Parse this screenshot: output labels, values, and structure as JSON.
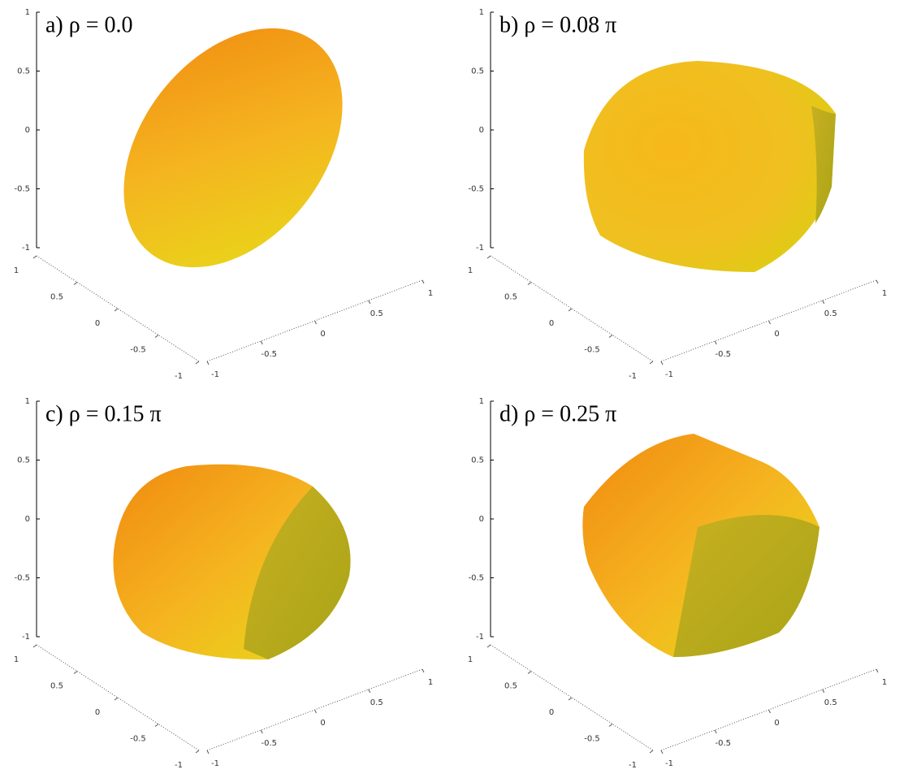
{
  "chart_data": [
    {
      "type": "surface3d",
      "title": "a) ρ = 0.0",
      "xlim": [
        -1,
        1
      ],
      "xticks": [
        -1,
        -0.5,
        0,
        0.5,
        1
      ],
      "ylim": [
        -1,
        1
      ],
      "yticks": [
        -1,
        -0.5,
        0,
        0.5,
        1
      ],
      "zlim": [
        -1,
        1
      ],
      "zticks": [
        -1,
        -0.5,
        0,
        0.5,
        1
      ]
    },
    {
      "type": "surface3d",
      "title": "b) ρ = 0.08 π",
      "xlim": [
        -1,
        1
      ],
      "xticks": [
        -1,
        -0.5,
        0,
        0.5,
        1
      ],
      "ylim": [
        -1,
        1
      ],
      "yticks": [
        -1,
        -0.5,
        0,
        0.5,
        1
      ],
      "zlim": [
        -1,
        1
      ],
      "zticks": [
        -1,
        -0.5,
        0,
        0.5,
        1
      ]
    },
    {
      "type": "surface3d",
      "title": "c) ρ = 0.15 π",
      "xlim": [
        -1,
        1
      ],
      "xticks": [
        -1,
        -0.5,
        0,
        0.5,
        1
      ],
      "ylim": [
        -1,
        1
      ],
      "yticks": [
        -1,
        -0.5,
        0,
        0.5,
        1
      ],
      "zlim": [
        -1,
        1
      ],
      "zticks": [
        -1,
        -0.5,
        0,
        0.5,
        1
      ]
    },
    {
      "type": "surface3d",
      "title": "d) ρ = 0.25 π",
      "xlim": [
        -1,
        1
      ],
      "xticks": [
        -1,
        -0.5,
        0,
        0.5,
        1
      ],
      "ylim": [
        -1,
        1
      ],
      "yticks": [
        -1,
        -0.5,
        0,
        0.5,
        1
      ],
      "zlim": [
        -1,
        1
      ],
      "zticks": [
        -1,
        -0.5,
        0,
        0.5,
        1
      ]
    }
  ]
}
